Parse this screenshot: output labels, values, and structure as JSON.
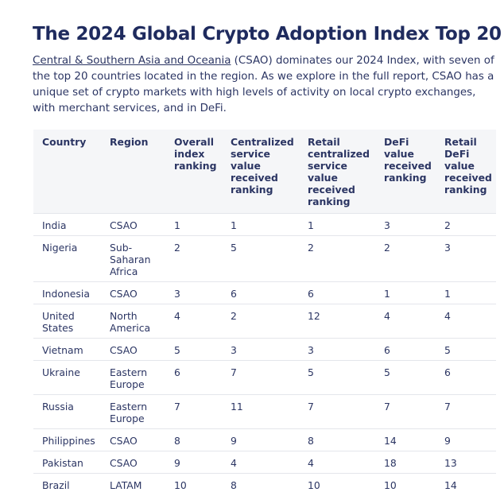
{
  "header": {
    "title": "The 2024 Global Crypto Adoption Index Top 20"
  },
  "intro": {
    "link": "Central & Southern Asia and Oceania",
    "text": " (CSAO) dominates our 2024 Index, with seven of the top 20 countries located in the region. As we explore in the full report, CSAO has a unique set of crypto markets with high levels of activity on local crypto exchanges, with merchant services, and in DeFi."
  },
  "table": {
    "columns": [
      "Country",
      "Region",
      "Overall index ranking",
      "Centralized service value received ranking",
      "Retail centralized service value received ranking",
      "DeFi value received ranking",
      "Retail DeFi value received ranking"
    ],
    "rows": [
      [
        "India",
        "CSAO",
        1,
        1,
        1,
        3,
        2
      ],
      [
        "Nigeria",
        "Sub-Saharan Africa",
        2,
        5,
        2,
        2,
        3
      ],
      [
        "Indonesia",
        "CSAO",
        3,
        6,
        6,
        1,
        1
      ],
      [
        "United States",
        "North America",
        4,
        2,
        12,
        4,
        4
      ],
      [
        "Vietnam",
        "CSAO",
        5,
        3,
        3,
        6,
        5
      ],
      [
        "Ukraine",
        "Eastern Europe",
        6,
        7,
        5,
        5,
        6
      ],
      [
        "Russia",
        "Eastern Europe",
        7,
        11,
        7,
        7,
        7
      ],
      [
        "Philippines",
        "CSAO",
        8,
        9,
        8,
        14,
        9
      ],
      [
        "Pakistan",
        "CSAO",
        9,
        4,
        4,
        18,
        13
      ],
      [
        "Brazil",
        "LATAM",
        10,
        8,
        10,
        10,
        14
      ]
    ]
  }
}
